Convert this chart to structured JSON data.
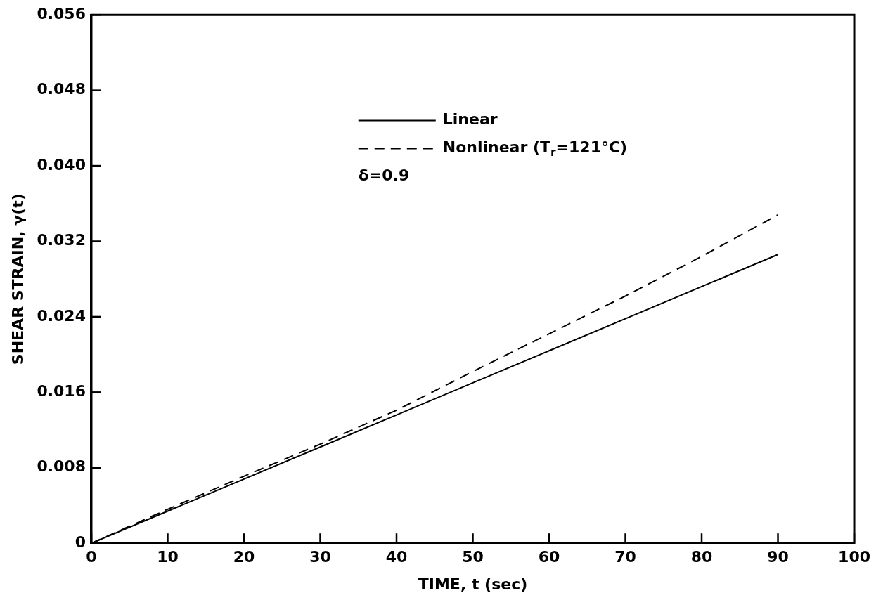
{
  "chart_data": {
    "type": "line",
    "xlabel": "TIME, t (sec)",
    "ylabel": "SHEAR STRAIN, γ(t)",
    "x": [
      0,
      10,
      20,
      30,
      40,
      50,
      60,
      70,
      80,
      90
    ],
    "series": [
      {
        "name": "Linear",
        "color": "#000000",
        "line_style": "solid",
        "values": [
          0,
          0.0034,
          0.0068,
          0.0102,
          0.0136,
          0.017,
          0.0204,
          0.0238,
          0.0272,
          0.0306
        ]
      },
      {
        "name": "Nonlinear (T$_{r}$=121°C)",
        "color": "#000000",
        "line_style": "dashed",
        "values": [
          0,
          0.0036,
          0.0071,
          0.0105,
          0.0141,
          0.0182,
          0.0222,
          0.0262,
          0.0304,
          0.0348
        ]
      }
    ],
    "xlim": [
      0,
      100
    ],
    "xticks": [
      0,
      10,
      20,
      30,
      40,
      50,
      60,
      70,
      80,
      90,
      100
    ],
    "ylim": [
      0,
      0.056
    ],
    "yticks": [
      0,
      0.008,
      0.016,
      0.024,
      0.032,
      {
        "value": 0.04,
        "label": "0.040"
      },
      0.048,
      0.056
    ],
    "grid": false,
    "legend": "top",
    "marker": "none",
    "annotations": [
      "δ=0.9"
    ]
  }
}
